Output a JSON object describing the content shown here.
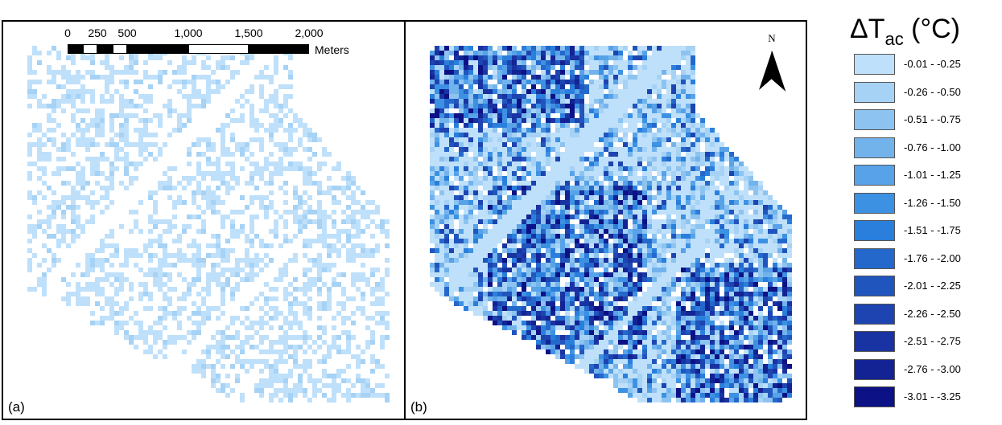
{
  "panels": [
    {
      "id": "a",
      "label": "(a)"
    },
    {
      "id": "b",
      "label": "(b)"
    }
  ],
  "scale_bar": {
    "ticks": [
      "0",
      "250",
      "500",
      "1,000",
      "1,500",
      "2,000"
    ],
    "units": "Meters"
  },
  "north_arrow": {
    "label": "N"
  },
  "legend": {
    "title_main": "ΔT",
    "title_sub": "ac",
    "title_unit": " (°C)",
    "classes": [
      {
        "label": "-0.01 - -0.25",
        "color": "#bfe0fa"
      },
      {
        "label": "-0.26 - -0.50",
        "color": "#a6d2f5"
      },
      {
        "label": "-0.51 - -0.75",
        "color": "#8cc3f0"
      },
      {
        "label": "-0.76 - -1.00",
        "color": "#72b3ec"
      },
      {
        "label": "-1.01 - -1.25",
        "color": "#57a2e8"
      },
      {
        "label": "-1.26 - -1.50",
        "color": "#3d91e2"
      },
      {
        "label": "-1.51 - -1.75",
        "color": "#2a7fdc"
      },
      {
        "label": "-1.76 - -2.00",
        "color": "#2468cc"
      },
      {
        "label": "-2.01 - -2.25",
        "color": "#2155be"
      },
      {
        "label": "-2.26 - -2.50",
        "color": "#1d44b0"
      },
      {
        "label": "-2.51 - -2.75",
        "color": "#1933a2"
      },
      {
        "label": "-2.76 - -3.00",
        "color": "#132394"
      },
      {
        "label": "-3.01 - -3.25",
        "color": "#0c1185"
      }
    ]
  }
}
